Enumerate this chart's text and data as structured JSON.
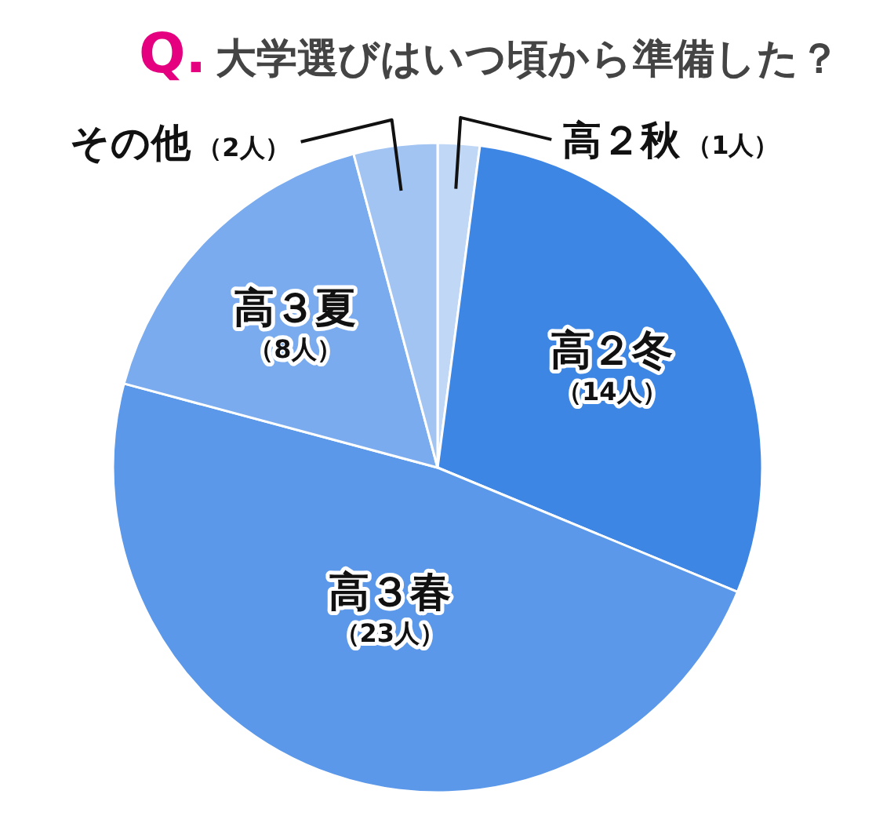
{
  "chart_data": {
    "type": "pie",
    "title": "Q. 大学選びはいつ頃から準備した？",
    "categories": [
      "高２秋",
      "高２冬",
      "高３春",
      "高３夏",
      "その他"
    ],
    "values": [
      1,
      14,
      23,
      8,
      2
    ],
    "value_labels": [
      "（1人）",
      "（14人）",
      "（23人）",
      "（8人）",
      "（2人）"
    ],
    "colors": [
      "#c0d8f6",
      "#3e86e4",
      "#5b98e9",
      "#79abee",
      "#a2c4f3"
    ]
  }
}
